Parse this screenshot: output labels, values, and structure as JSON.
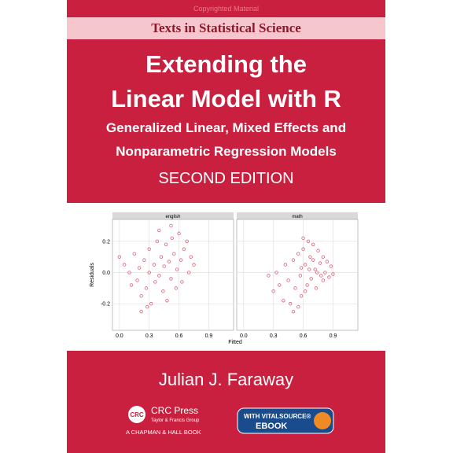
{
  "cover": {
    "watermark": "Copyrighted Material",
    "series": "Texts in Statistical Science",
    "title_line1": "Extending the",
    "title_line2": "Linear Model with R",
    "subtitle_line1": "Generalized Linear, Mixed Effects and",
    "subtitle_line2": "Nonparametric Regression Models",
    "edition": "SECOND EDITION",
    "author": "Julian J. Faraway",
    "publisher": "CRC Press",
    "publisher_group": "Taylor & Francis Group",
    "imprint": "A CHAPMAN & HALL BOOK",
    "logo_text": "CRC",
    "ebook_line1": "WITH VITALSOURCE®",
    "ebook_line2": "EBOOK"
  },
  "figure": {
    "ylabel": "Residuals",
    "xlabel": "Fitted",
    "xlim": [
      -0.07,
      1.15
    ],
    "ylim": [
      -0.37,
      0.34
    ],
    "xticks": [
      {
        "value": 0,
        "label": "0.0"
      },
      0.3,
      0.6,
      0.9
    ],
    "yticks": [
      0.2,
      {
        "value": 0,
        "label": "0.0"
      },
      -0.2
    ],
    "panels": [
      {
        "name": "english",
        "points": [
          [
            0.0,
            0.1
          ],
          [
            0.05,
            0.05
          ],
          [
            0.1,
            0.0
          ],
          [
            0.12,
            -0.08
          ],
          [
            0.15,
            0.12
          ],
          [
            0.18,
            -0.05
          ],
          [
            0.2,
            0.03
          ],
          [
            0.22,
            -0.15
          ],
          [
            0.25,
            0.08
          ],
          [
            0.27,
            -0.1
          ],
          [
            0.3,
            0.0
          ],
          [
            0.3,
            0.15
          ],
          [
            0.32,
            -0.2
          ],
          [
            0.35,
            0.05
          ],
          [
            0.36,
            -0.06
          ],
          [
            0.38,
            0.2
          ],
          [
            0.4,
            -0.02
          ],
          [
            0.42,
            0.1
          ],
          [
            0.44,
            -0.12
          ],
          [
            0.45,
            0.04
          ],
          [
            0.47,
            0.18
          ],
          [
            0.48,
            -0.18
          ],
          [
            0.5,
            0.07
          ],
          [
            0.52,
            -0.04
          ],
          [
            0.53,
            0.22
          ],
          [
            0.55,
            0.12
          ],
          [
            0.57,
            -0.1
          ],
          [
            0.58,
            0.02
          ],
          [
            0.6,
            0.25
          ],
          [
            0.62,
            0.08
          ],
          [
            0.63,
            -0.06
          ],
          [
            0.65,
            0.15
          ],
          [
            0.68,
            0.2
          ],
          [
            0.7,
            0.0
          ],
          [
            0.72,
            0.1
          ],
          [
            0.75,
            0.05
          ],
          [
            0.22,
            -0.25
          ],
          [
            0.28,
            -0.22
          ],
          [
            0.4,
            0.27
          ],
          [
            0.52,
            0.3
          ]
        ]
      },
      {
        "name": "math",
        "points": [
          [
            0.25,
            -0.02
          ],
          [
            0.3,
            -0.12
          ],
          [
            0.33,
            0.0
          ],
          [
            0.36,
            -0.08
          ],
          [
            0.4,
            -0.18
          ],
          [
            0.42,
            0.05
          ],
          [
            0.45,
            -0.05
          ],
          [
            0.47,
            -0.2
          ],
          [
            0.5,
            0.08
          ],
          [
            0.52,
            -0.1
          ],
          [
            0.55,
            0.12
          ],
          [
            0.57,
            -0.02
          ],
          [
            0.58,
            -0.15
          ],
          [
            0.6,
            0.15
          ],
          [
            0.62,
            0.05
          ],
          [
            0.64,
            -0.08
          ],
          [
            0.65,
            0.2
          ],
          [
            0.67,
            0.1
          ],
          [
            0.68,
            -0.04
          ],
          [
            0.7,
            0.18
          ],
          [
            0.72,
            0.02
          ],
          [
            0.73,
            -0.1
          ],
          [
            0.75,
            0.14
          ],
          [
            0.77,
            0.06
          ],
          [
            0.78,
            -0.02
          ],
          [
            0.8,
            0.1
          ],
          [
            0.82,
            0.0
          ],
          [
            0.84,
            0.07
          ],
          [
            0.86,
            -0.03
          ],
          [
            0.88,
            0.04
          ],
          [
            0.9,
            -0.01
          ],
          [
            0.6,
            0.22
          ],
          [
            0.55,
            -0.22
          ],
          [
            0.7,
            0.08
          ],
          [
            0.62,
            -0.12
          ],
          [
            0.5,
            -0.25
          ],
          [
            0.74,
            0.0
          ],
          [
            0.66,
            0.02
          ],
          [
            0.58,
            0.03
          ],
          [
            0.8,
            -0.05
          ]
        ]
      }
    ]
  }
}
